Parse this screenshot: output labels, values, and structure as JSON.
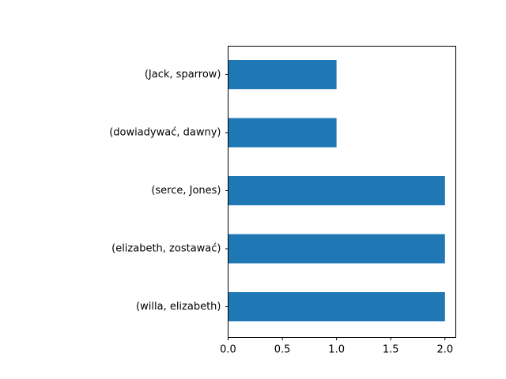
{
  "chart_data": {
    "type": "bar",
    "orientation": "horizontal",
    "categories": [
      "(Jack, sparrow)",
      "(dowiadywać, dawny)",
      "(serce, Jones)",
      "(elizabeth, zostawać)",
      "(willa, elizabeth)"
    ],
    "values": [
      1,
      1,
      2,
      2,
      2
    ],
    "x_ticks": [
      0.0,
      0.5,
      1.0,
      1.5,
      2.0
    ],
    "x_tick_labels": [
      "0.0",
      "0.5",
      "1.0",
      "1.5",
      "2.0"
    ],
    "xlim": [
      0,
      2.1
    ],
    "grid": false,
    "legend": false,
    "bar_color": "#1f77b4"
  }
}
